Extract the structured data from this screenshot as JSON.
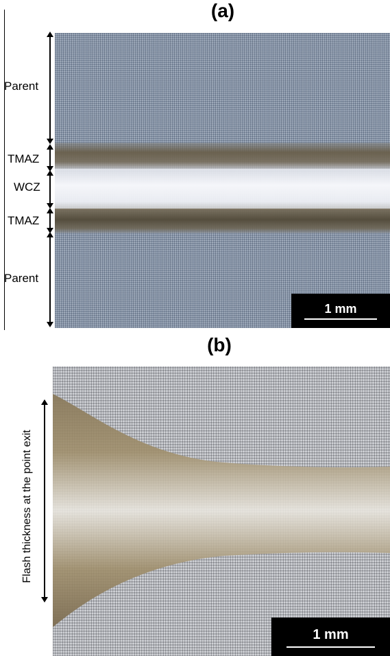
{
  "panel_a": {
    "label": "(a)",
    "zones": {
      "parent_top": "Parent",
      "tmaz_top": "TMAZ",
      "wcz": "WCZ",
      "tmaz_bottom": "TMAZ",
      "parent_bottom": "Parent"
    },
    "scale_bar": "1 mm"
  },
  "panel_b": {
    "label": "(b)",
    "flash_label": "Flash thickness at the point exit",
    "scale_bar": "1 mm"
  }
}
